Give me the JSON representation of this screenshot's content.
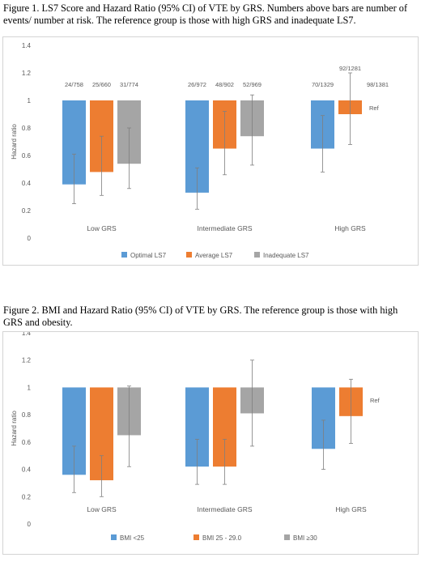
{
  "captions": {
    "fig1": "Figure 1. LS7 Score and Hazard Ratio (95% CI) of VTE by GRS.  Numbers above bars are number of events/ number at risk. The reference group is those with high GRS and inadequate LS7.",
    "fig2": "Figure 2. BMI and Hazard Ratio (95% CI) of VTE by GRS. The reference group is those with high GRS and obesity."
  },
  "colors": {
    "series1": "#5b9bd5",
    "series2": "#ed7d31",
    "series3": "#a5a5a5",
    "errorbar": "#7f7f7f",
    "axis_text": "#595959"
  },
  "chart_data": [
    {
      "type": "bar",
      "title": "",
      "xlabel": "",
      "ylabel": "Hazard ratio",
      "ylim": [
        0,
        1.4
      ],
      "yticks": [
        "0",
        "0.2",
        "0.4",
        "0.6",
        "0.8",
        "1",
        "1.2",
        "1.4"
      ],
      "baseline": 1,
      "categories": [
        "Low GRS",
        "Intermediate GRS",
        "High GRS"
      ],
      "legend_position": "bottom",
      "series": [
        {
          "name": "Optimal LS7",
          "values": [
            0.39,
            0.33,
            0.65
          ],
          "ci_low": [
            0.25,
            0.21,
            0.48
          ],
          "ci_high": [
            0.61,
            0.51,
            0.89
          ],
          "labels": [
            "24/758",
            "26/972",
            "70/1329"
          ]
        },
        {
          "name": "Average LS7",
          "values": [
            0.48,
            0.65,
            0.9
          ],
          "ci_low": [
            0.31,
            0.46,
            0.68
          ],
          "ci_high": [
            0.74,
            0.92,
            1.2
          ],
          "labels": [
            "25/660",
            "48/902",
            "92/1281"
          ]
        },
        {
          "name": "Inadequate LS7",
          "values": [
            0.54,
            0.74,
            null
          ],
          "ci_low": [
            0.36,
            0.53,
            null
          ],
          "ci_high": [
            0.8,
            1.04,
            null
          ],
          "labels": [
            "31/774",
            "52/969",
            "98/1381"
          ]
        }
      ],
      "annotations": [
        "Ref"
      ]
    },
    {
      "type": "bar",
      "title": "",
      "xlabel": "",
      "ylabel": "Hazard ratio",
      "ylim": [
        0,
        1.4
      ],
      "yticks": [
        "0",
        "0.2",
        "0.4",
        "0.6",
        "0.8",
        "1",
        "1.2",
        "1.4"
      ],
      "baseline": 1,
      "categories": [
        "Low GRS",
        "Intermediate GRS",
        "High GRS"
      ],
      "legend_position": "bottom",
      "series": [
        {
          "name": "BMI <25",
          "values": [
            0.36,
            0.42,
            0.55
          ],
          "ci_low": [
            0.23,
            0.29,
            0.4
          ],
          "ci_high": [
            0.57,
            0.62,
            0.76
          ]
        },
        {
          "name": "BMI 25 - 29.0",
          "values": [
            0.32,
            0.42,
            0.79
          ],
          "ci_low": [
            0.2,
            0.29,
            0.59
          ],
          "ci_high": [
            0.5,
            0.62,
            1.06
          ]
        },
        {
          "name": "BMI ≥30",
          "values": [
            0.65,
            0.81,
            null
          ],
          "ci_low": [
            0.42,
            0.57,
            null
          ],
          "ci_high": [
            1.01,
            1.2,
            null
          ]
        }
      ],
      "annotations": [
        "Ref"
      ]
    }
  ]
}
